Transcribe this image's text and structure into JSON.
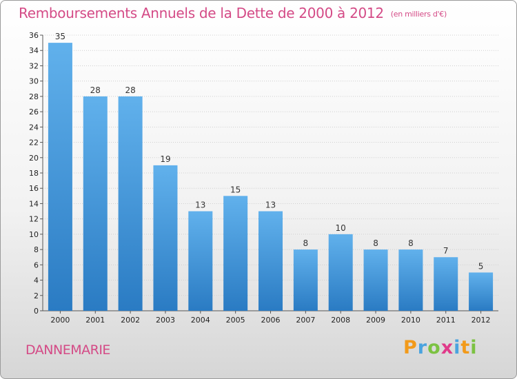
{
  "title": "Remboursements Annuels de la Dette de 2000 à 2012",
  "title_unit": "(en milliers d'€)",
  "commune_name": "DANNEMARIE",
  "logo": {
    "text": "Proxiti",
    "letter_colors": [
      "#f29a1a",
      "#4aa3df",
      "#7cc242",
      "#e03a8a",
      "#4aa3df",
      "#f29a1a",
      "#7cc242"
    ]
  },
  "colors": {
    "title": "#d44a86",
    "bar_top": "#61b1ec",
    "bar_bottom": "#2a7bc3",
    "grid": "#cfcfcf"
  },
  "chart_data": {
    "type": "bar",
    "title": "Remboursements Annuels de la Dette de 2000 à 2012",
    "categories": [
      "2000",
      "2001",
      "2002",
      "2003",
      "2004",
      "2005",
      "2006",
      "2007",
      "2008",
      "2009",
      "2010",
      "2011",
      "2012"
    ],
    "values": [
      35,
      28,
      28,
      19,
      13,
      15,
      13,
      8,
      10,
      8,
      8,
      7,
      5
    ],
    "ylim": [
      0,
      36
    ],
    "yticks": [
      0,
      2,
      4,
      6,
      8,
      10,
      12,
      14,
      16,
      18,
      20,
      22,
      24,
      26,
      28,
      30,
      32,
      34,
      36
    ],
    "grid": true,
    "xlabel": "",
    "ylabel": ""
  }
}
